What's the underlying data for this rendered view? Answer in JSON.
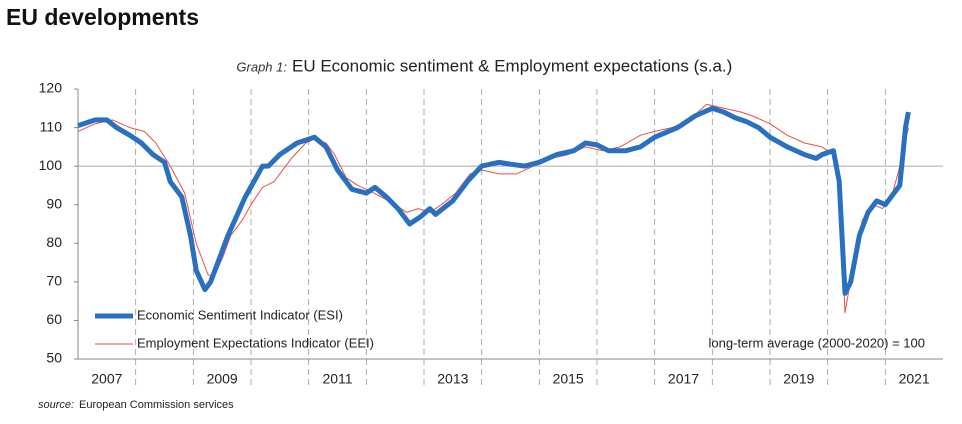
{
  "header": {
    "title": "EU developments"
  },
  "chart_data": {
    "type": "line",
    "graph_label": "Graph 1:",
    "title": "EU Economic sentiment & Employment expectations (s.a.)",
    "xlim": [
      2007,
      2022
    ],
    "xticks": [
      {
        "value": 2007.5,
        "label": "2007"
      },
      {
        "value": 2009.5,
        "label": "2009"
      },
      {
        "value": 2011.5,
        "label": "2011"
      },
      {
        "value": 2013.5,
        "label": "2013"
      },
      {
        "value": 2015.5,
        "label": "2015"
      },
      {
        "value": 2017.5,
        "label": "2017"
      },
      {
        "value": 2019.5,
        "label": "2019"
      },
      {
        "value": 2021.5,
        "label": "2021"
      }
    ],
    "xgrid": [
      2008,
      2009,
      2010,
      2011,
      2012,
      2013,
      2014,
      2015,
      2016,
      2017,
      2018,
      2019,
      2020,
      2021
    ],
    "ylim": [
      50,
      120
    ],
    "yticks": [
      50,
      60,
      70,
      80,
      90,
      100,
      110,
      120
    ],
    "reference_line": {
      "value": 100,
      "label": "long-term average (2000-2020) = 100"
    },
    "series": [
      {
        "name": "Economic Sentiment Indicator (ESI)",
        "color": "#2a70c0",
        "width": 5,
        "x": [
          2007,
          2007.3,
          2007.5,
          2007.67,
          2007.9,
          2008.1,
          2008.3,
          2008.5,
          2008.6,
          2008.8,
          2008.95,
          2009.05,
          2009.2,
          2009.3,
          2009.45,
          2009.6,
          2009.75,
          2009.9,
          2010.05,
          2010.2,
          2010.3,
          2010.5,
          2010.8,
          2011.1,
          2011.3,
          2011.5,
          2011.75,
          2012,
          2012.15,
          2012.35,
          2012.55,
          2012.75,
          2012.95,
          2013.1,
          2013.2,
          2013.5,
          2013.75,
          2014,
          2014.3,
          2014.5,
          2014.75,
          2015,
          2015.3,
          2015.6,
          2015.8,
          2016,
          2016.2,
          2016.5,
          2016.75,
          2017,
          2017.4,
          2017.7,
          2018,
          2018.2,
          2018.4,
          2018.6,
          2018.8,
          2019,
          2019.3,
          2019.6,
          2019.8,
          2019.9,
          2020.1,
          2020.2,
          2020.3,
          2020.4,
          2020.55,
          2020.7,
          2020.85,
          2021,
          2021.1,
          2021.25,
          2021.35,
          2021.4
        ],
        "values": [
          110.5,
          112,
          112,
          110,
          108,
          106,
          103,
          101,
          96,
          92,
          82,
          73,
          68,
          70,
          76,
          82,
          87,
          92,
          96,
          100,
          100,
          103,
          106,
          107.5,
          105,
          99,
          94,
          93,
          94.5,
          92,
          89,
          85,
          87,
          89,
          87.5,
          91,
          96,
          100,
          101,
          100.5,
          100,
          101,
          103,
          104,
          106,
          105.5,
          104,
          104,
          105,
          107.5,
          110,
          113,
          115,
          114,
          112.5,
          111.5,
          110,
          107.5,
          105,
          103,
          102,
          103,
          104,
          96,
          67,
          70,
          82,
          88,
          91,
          90,
          92,
          95,
          110,
          114
        ]
      },
      {
        "name": "Employment Expectations Indicator (EEI)",
        "color": "#e8504a",
        "width": 1,
        "x": [
          2007,
          2007.3,
          2007.6,
          2007.9,
          2008.15,
          2008.35,
          2008.6,
          2008.85,
          2009.05,
          2009.25,
          2009.35,
          2009.5,
          2009.65,
          2009.85,
          2010,
          2010.2,
          2010.4,
          2010.7,
          2010.95,
          2011.1,
          2011.3,
          2011.45,
          2011.65,
          2011.85,
          2012,
          2012.2,
          2012.5,
          2012.7,
          2012.9,
          2013.1,
          2013.3,
          2013.55,
          2013.8,
          2014,
          2014.3,
          2014.6,
          2014.9,
          2015.2,
          2015.5,
          2015.8,
          2016.1,
          2016.4,
          2016.75,
          2017,
          2017.3,
          2017.6,
          2017.9,
          2018.2,
          2018.5,
          2018.7,
          2019,
          2019.3,
          2019.6,
          2019.9,
          2020.1,
          2020.2,
          2020.3,
          2020.45,
          2020.6,
          2020.8,
          2020.95,
          2021.1,
          2021.25,
          2021.4
        ],
        "values": [
          109,
          111,
          112,
          110,
          109,
          106,
          100,
          93,
          80,
          72,
          71,
          76,
          82,
          86,
          90,
          94.5,
          96,
          102,
          106,
          107,
          106,
          103,
          97,
          95,
          94,
          92.5,
          90,
          88,
          89,
          88,
          90,
          93,
          98,
          99,
          98,
          98,
          100,
          102,
          103,
          105,
          104,
          105,
          108,
          109,
          110,
          112,
          116,
          115,
          114,
          113,
          111,
          108,
          106,
          105,
          103,
          96,
          62,
          75,
          86,
          90,
          89,
          91.5,
          100,
          110
        ]
      }
    ],
    "source_label": "source:",
    "source": "European Commission services"
  }
}
